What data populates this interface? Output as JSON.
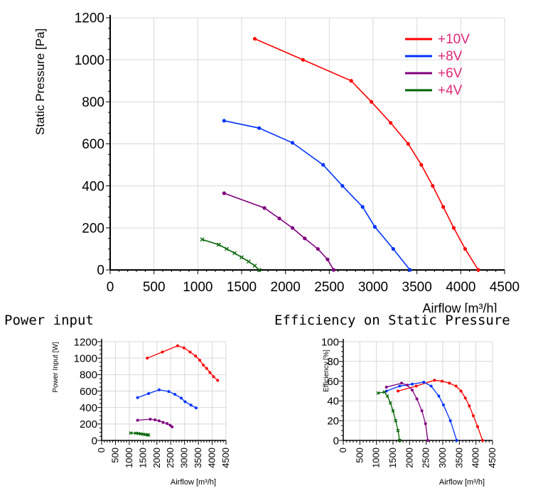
{
  "headings": {
    "power": "Power input",
    "efficiency": "Efficiency on Static Pressure"
  },
  "chart_data": [
    {
      "id": "pressure",
      "type": "line",
      "xlabel": "Airflow [m³/h]",
      "ylabel": "Static Pressure [Pa]",
      "xlim": [
        0,
        4500
      ],
      "ylim": [
        0,
        1200
      ],
      "xticks": [
        0,
        500,
        1000,
        1500,
        2000,
        2500,
        3000,
        3500,
        4000,
        4500
      ],
      "yticks": [
        0,
        200,
        400,
        600,
        800,
        1000,
        1200
      ],
      "grid": true,
      "legend": "top-right",
      "series": [
        {
          "name": "+10V",
          "color": "#ff0000",
          "marker": "dot",
          "x": [
            1650,
            2200,
            2750,
            2980,
            3200,
            3400,
            3550,
            3680,
            3800,
            3920,
            4050,
            4200
          ],
          "y": [
            1100,
            1000,
            900,
            800,
            700,
            600,
            500,
            400,
            300,
            200,
            100,
            0
          ]
        },
        {
          "name": "+8V",
          "color": "#0033ff",
          "marker": "dot",
          "x": [
            1300,
            1700,
            2080,
            2430,
            2650,
            2880,
            3020,
            3230,
            3420
          ],
          "y": [
            710,
            675,
            605,
            500,
            400,
            300,
            205,
            100,
            0
          ]
        },
        {
          "name": "+6V",
          "color": "#800080",
          "marker": "dot",
          "x": [
            1300,
            1760,
            1930,
            2080,
            2220,
            2370,
            2480,
            2550
          ],
          "y": [
            365,
            295,
            245,
            200,
            150,
            100,
            50,
            0
          ]
        },
        {
          "name": "+4V",
          "color": "#006400",
          "marker": "x",
          "x": [
            1050,
            1240,
            1330,
            1420,
            1500,
            1580,
            1650,
            1700
          ],
          "y": [
            145,
            120,
            100,
            80,
            60,
            40,
            20,
            0
          ]
        }
      ]
    },
    {
      "id": "power",
      "type": "line",
      "xlabel": "Airflow [m³/h]",
      "ylabel": "Power Input [W]",
      "xlim": [
        0,
        4500
      ],
      "ylim": [
        0,
        1200
      ],
      "xticks": [
        0,
        500,
        1000,
        1500,
        2000,
        2500,
        3000,
        3500,
        4000,
        4500
      ],
      "yticks": [
        0,
        200,
        400,
        600,
        800,
        1000,
        1200
      ],
      "grid": true,
      "series": [
        {
          "name": "+10V",
          "color": "#ff0000",
          "marker": "dot",
          "x": [
            1650,
            2200,
            2750,
            2980,
            3200,
            3400,
            3550,
            3680,
            3800,
            3920,
            4050,
            4200
          ],
          "y": [
            1000,
            1075,
            1150,
            1125,
            1075,
            1025,
            975,
            915,
            875,
            825,
            775,
            730
          ]
        },
        {
          "name": "+8V",
          "color": "#0033ff",
          "marker": "dot",
          "x": [
            1300,
            1700,
            2080,
            2430,
            2650,
            2880,
            3020,
            3230,
            3420
          ],
          "y": [
            520,
            570,
            615,
            595,
            560,
            515,
            470,
            430,
            395
          ]
        },
        {
          "name": "+6V",
          "color": "#800080",
          "marker": "dot",
          "x": [
            1300,
            1760,
            1930,
            2080,
            2220,
            2370,
            2480,
            2550
          ],
          "y": [
            245,
            258,
            250,
            238,
            220,
            205,
            185,
            165
          ]
        },
        {
          "name": "+4V",
          "color": "#006400",
          "marker": "x",
          "x": [
            1050,
            1240,
            1330,
            1420,
            1500,
            1580,
            1650,
            1700
          ],
          "y": [
            90,
            88,
            85,
            80,
            76,
            72,
            68,
            65
          ]
        }
      ]
    },
    {
      "id": "efficiency",
      "type": "line",
      "xlabel": "Airflow [m³/h]",
      "ylabel": "Efficiency [%]",
      "xlim": [
        0,
        4500
      ],
      "ylim": [
        0,
        100
      ],
      "xticks": [
        0,
        500,
        1000,
        1500,
        2000,
        2500,
        3000,
        3500,
        4000,
        4500
      ],
      "yticks": [
        0,
        20,
        40,
        60,
        80,
        100
      ],
      "grid": true,
      "series": [
        {
          "name": "+10V",
          "color": "#ff0000",
          "marker": "dot",
          "x": [
            1650,
            2200,
            2750,
            2980,
            3200,
            3400,
            3550,
            3680,
            3800,
            3920,
            4050,
            4200
          ],
          "y": [
            50,
            55,
            61,
            60,
            58,
            55,
            50,
            43,
            35,
            25,
            14,
            0
          ]
        },
        {
          "name": "+8V",
          "color": "#0033ff",
          "marker": "dot",
          "x": [
            1300,
            1700,
            2080,
            2430,
            2650,
            2880,
            3020,
            3230,
            3420
          ],
          "y": [
            50,
            55,
            57,
            59,
            55,
            45,
            36,
            20,
            0
          ]
        },
        {
          "name": "+6V",
          "color": "#800080",
          "marker": "dot",
          "x": [
            1300,
            1760,
            1930,
            2080,
            2220,
            2370,
            2480,
            2550
          ],
          "y": [
            54,
            58,
            56,
            51,
            42,
            30,
            17,
            0
          ]
        },
        {
          "name": "+4V",
          "color": "#006400",
          "marker": "x",
          "x": [
            1050,
            1240,
            1330,
            1420,
            1500,
            1580,
            1650,
            1700
          ],
          "y": [
            48,
            49,
            45,
            38,
            30,
            20,
            10,
            0
          ]
        }
      ]
    }
  ]
}
